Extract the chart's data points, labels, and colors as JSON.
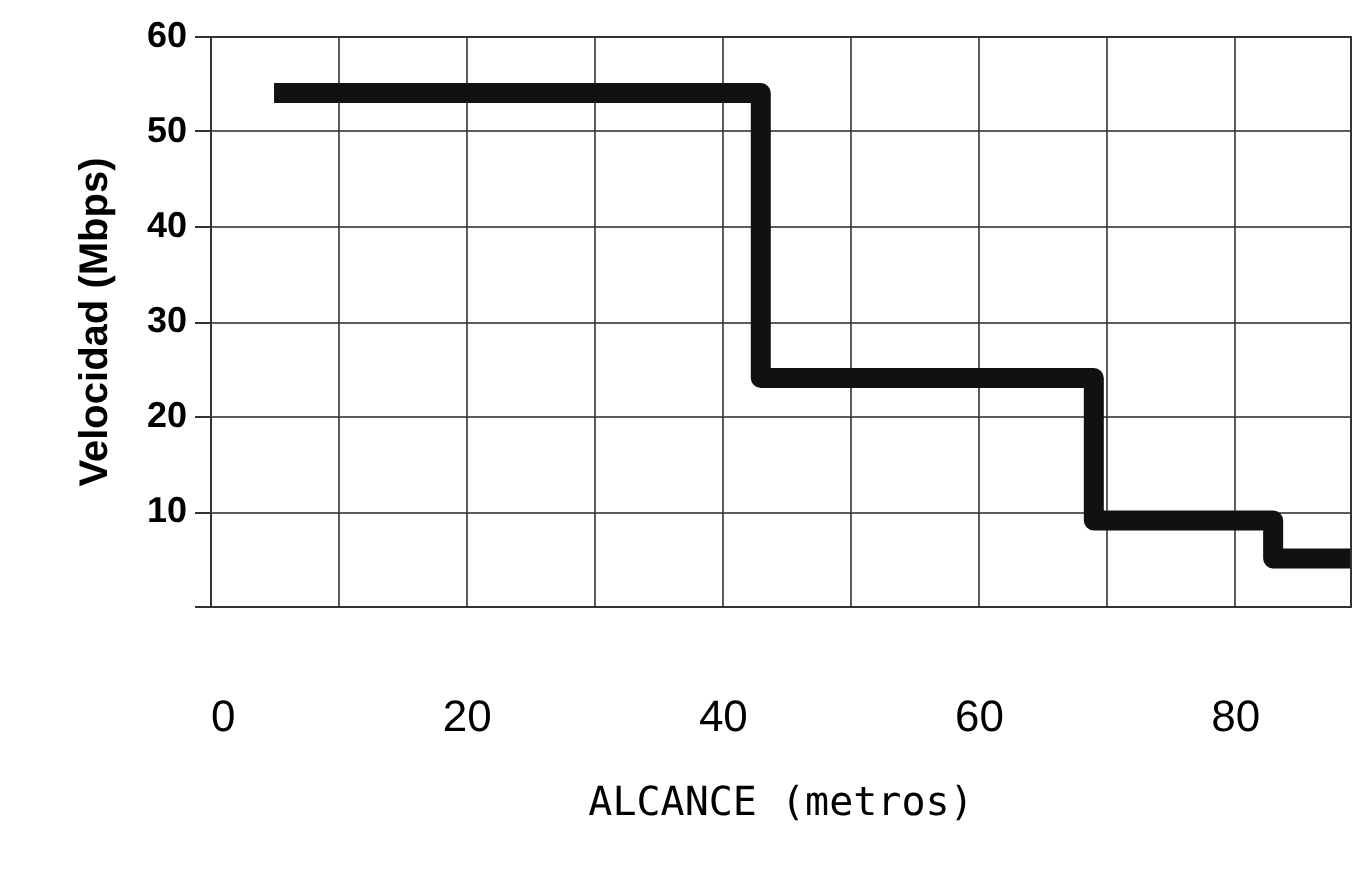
{
  "chart_data": {
    "type": "step",
    "xlabel": "ALCANCE  (metros)",
    "ylabel": "Velocidad (Mbps)",
    "x": [
      5,
      43,
      69,
      83,
      89
    ],
    "series": [
      {
        "color": "#111111",
        "values": [
          54,
          24,
          9,
          5,
          5
        ]
      }
    ],
    "xlim": [
      0,
      89
    ],
    "xticks": [
      0,
      {
        "value": 10,
        "label": null
      },
      20,
      {
        "value": 30,
        "label": null
      },
      40,
      {
        "value": 50,
        "label": null
      },
      60,
      {
        "value": 70,
        "label": null
      },
      80
    ],
    "ylim": [
      0,
      60
    ],
    "yticks": [
      {
        "value": 0,
        "label": null
      },
      10,
      20,
      30,
      40,
      50,
      60
    ],
    "grid": true,
    "marker": "none",
    "line_style": "solid"
  }
}
